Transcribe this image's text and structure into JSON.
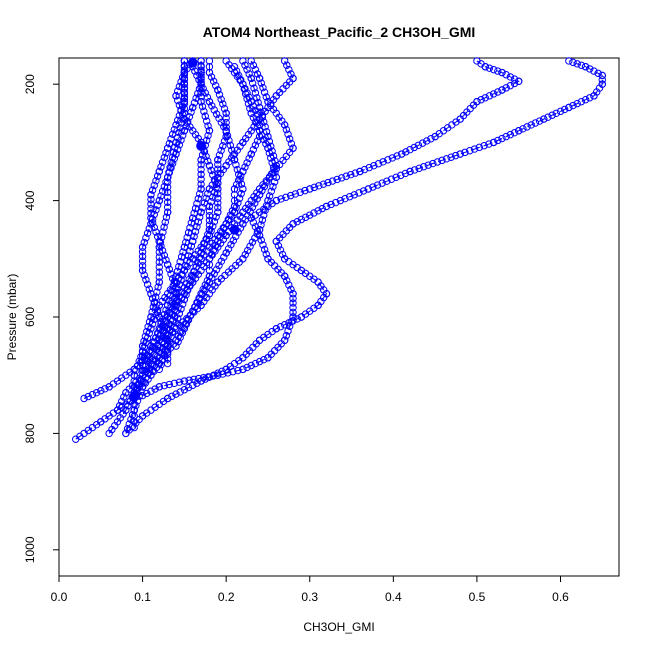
{
  "chart_data": {
    "type": "scatter",
    "title": "ATOM4 Northeast_Pacific_2 CH3OH_GMI",
    "xlabel": "CH3OH_GMI",
    "ylabel": "Pressure (mbar)",
    "xlim": [
      0.0,
      0.67
    ],
    "ylim": [
      1045,
      155
    ],
    "y_reversed": true,
    "xticks": [
      0.0,
      0.1,
      0.2,
      0.3,
      0.4,
      0.5,
      0.6
    ],
    "xtick_labels": [
      "0.0",
      "0.1",
      "0.2",
      "0.3",
      "0.4",
      "0.5",
      "0.6"
    ],
    "yticks": [
      200,
      400,
      600,
      800,
      1000
    ],
    "ytick_labels": [
      "200",
      "400",
      "600",
      "800",
      "1000"
    ],
    "grid": false,
    "marker_color": "#0000ff",
    "series": [
      {
        "points": [
          [
            0.02,
            810
          ],
          [
            0.05,
            780
          ],
          [
            0.09,
            740
          ],
          [
            0.1,
            700
          ],
          [
            0.11,
            650
          ],
          [
            0.13,
            600
          ],
          [
            0.15,
            550
          ],
          [
            0.17,
            500
          ],
          [
            0.19,
            460
          ],
          [
            0.21,
            420
          ],
          [
            0.22,
            380
          ],
          [
            0.21,
            330
          ],
          [
            0.2,
            280
          ],
          [
            0.18,
            230
          ],
          [
            0.16,
            170
          ]
        ]
      },
      {
        "points": [
          [
            0.03,
            740
          ],
          [
            0.06,
            720
          ],
          [
            0.09,
            690
          ],
          [
            0.11,
            660
          ],
          [
            0.14,
            620
          ],
          [
            0.17,
            580
          ],
          [
            0.19,
            540
          ],
          [
            0.22,
            500
          ],
          [
            0.24,
            450
          ],
          [
            0.25,
            400
          ],
          [
            0.26,
            360
          ],
          [
            0.25,
            310
          ],
          [
            0.23,
            250
          ],
          [
            0.22,
            200
          ],
          [
            0.2,
            160
          ]
        ]
      },
      {
        "points": [
          [
            0.06,
            800
          ],
          [
            0.08,
            760
          ],
          [
            0.09,
            730
          ],
          [
            0.1,
            700
          ],
          [
            0.1,
            650
          ],
          [
            0.11,
            600
          ],
          [
            0.12,
            540
          ],
          [
            0.12,
            480
          ],
          [
            0.13,
            420
          ],
          [
            0.13,
            360
          ],
          [
            0.14,
            300
          ],
          [
            0.15,
            250
          ],
          [
            0.15,
            200
          ],
          [
            0.15,
            160
          ]
        ]
      },
      {
        "points": [
          [
            0.08,
            800
          ],
          [
            0.09,
            760
          ],
          [
            0.1,
            720
          ],
          [
            0.12,
            680
          ],
          [
            0.14,
            640
          ],
          [
            0.16,
            590
          ],
          [
            0.18,
            540
          ],
          [
            0.2,
            490
          ],
          [
            0.22,
            440
          ],
          [
            0.24,
            390
          ],
          [
            0.26,
            340
          ],
          [
            0.25,
            290
          ],
          [
            0.24,
            240
          ],
          [
            0.23,
            190
          ],
          [
            0.22,
            160
          ]
        ]
      },
      {
        "points": [
          [
            0.09,
            735
          ],
          [
            0.1,
            700
          ],
          [
            0.11,
            660
          ],
          [
            0.12,
            620
          ],
          [
            0.13,
            580
          ],
          [
            0.14,
            530
          ],
          [
            0.15,
            480
          ],
          [
            0.16,
            430
          ],
          [
            0.17,
            380
          ],
          [
            0.17,
            330
          ],
          [
            0.18,
            280
          ],
          [
            0.17,
            230
          ],
          [
            0.17,
            180
          ],
          [
            0.17,
            160
          ]
        ]
      },
      {
        "points": [
          [
            0.1,
            720
          ],
          [
            0.11,
            680
          ],
          [
            0.12,
            640
          ],
          [
            0.13,
            600
          ],
          [
            0.14,
            560
          ],
          [
            0.15,
            520
          ],
          [
            0.16,
            470
          ],
          [
            0.17,
            420
          ],
          [
            0.18,
            380
          ],
          [
            0.2,
            340
          ],
          [
            0.22,
            300
          ],
          [
            0.24,
            260
          ],
          [
            0.26,
            220
          ],
          [
            0.28,
            190
          ],
          [
            0.27,
            160
          ]
        ]
      },
      {
        "points": [
          [
            0.11,
            700
          ],
          [
            0.12,
            660
          ],
          [
            0.13,
            620
          ],
          [
            0.14,
            580
          ],
          [
            0.16,
            540
          ],
          [
            0.18,
            500
          ],
          [
            0.2,
            460
          ],
          [
            0.22,
            420
          ],
          [
            0.24,
            380
          ],
          [
            0.26,
            345
          ],
          [
            0.28,
            310
          ],
          [
            0.27,
            270
          ],
          [
            0.25,
            230
          ],
          [
            0.24,
            190
          ],
          [
            0.23,
            160
          ]
        ]
      },
      {
        "points": [
          [
            0.13,
            680
          ],
          [
            0.13,
            640
          ],
          [
            0.12,
            600
          ],
          [
            0.11,
            560
          ],
          [
            0.1,
            520
          ],
          [
            0.1,
            480
          ],
          [
            0.11,
            440
          ],
          [
            0.12,
            400
          ],
          [
            0.13,
            360
          ],
          [
            0.14,
            320
          ],
          [
            0.15,
            280
          ],
          [
            0.16,
            240
          ],
          [
            0.17,
            200
          ],
          [
            0.17,
            160
          ]
        ]
      },
      {
        "points": [
          [
            0.1,
            735
          ],
          [
            0.12,
            720
          ],
          [
            0.15,
            710
          ],
          [
            0.19,
            700
          ],
          [
            0.22,
            690
          ],
          [
            0.25,
            670
          ],
          [
            0.27,
            640
          ],
          [
            0.28,
            600
          ],
          [
            0.28,
            560
          ],
          [
            0.27,
            530
          ],
          [
            0.25,
            500
          ],
          [
            0.24,
            460
          ],
          [
            0.23,
            430
          ],
          [
            0.26,
            400
          ],
          [
            0.3,
            380
          ],
          [
            0.36,
            350
          ],
          [
            0.41,
            320
          ],
          [
            0.45,
            290
          ],
          [
            0.48,
            260
          ],
          [
            0.5,
            230
          ],
          [
            0.53,
            210
          ],
          [
            0.55,
            195
          ],
          [
            0.53,
            180
          ],
          [
            0.51,
            170
          ],
          [
            0.5,
            160
          ]
        ]
      },
      {
        "points": [
          [
            0.08,
            800
          ],
          [
            0.1,
            770
          ],
          [
            0.13,
            740
          ],
          [
            0.17,
            710
          ],
          [
            0.2,
            690
          ],
          [
            0.22,
            670
          ],
          [
            0.24,
            640
          ],
          [
            0.26,
            620
          ],
          [
            0.29,
            600
          ],
          [
            0.31,
            580
          ],
          [
            0.32,
            560
          ],
          [
            0.31,
            540
          ],
          [
            0.29,
            520
          ],
          [
            0.27,
            500
          ],
          [
            0.26,
            470
          ],
          [
            0.28,
            440
          ],
          [
            0.32,
            410
          ],
          [
            0.37,
            380
          ],
          [
            0.42,
            350
          ],
          [
            0.48,
            320
          ],
          [
            0.52,
            300
          ],
          [
            0.55,
            280
          ],
          [
            0.58,
            260
          ],
          [
            0.61,
            240
          ],
          [
            0.64,
            220
          ],
          [
            0.65,
            200
          ],
          [
            0.65,
            185
          ],
          [
            0.63,
            170
          ],
          [
            0.61,
            160
          ]
        ]
      },
      {
        "points": [
          [
            0.14,
            650
          ],
          [
            0.15,
            620
          ],
          [
            0.16,
            590
          ],
          [
            0.17,
            560
          ],
          [
            0.18,
            530
          ],
          [
            0.18,
            500
          ],
          [
            0.19,
            470
          ],
          [
            0.2,
            440
          ],
          [
            0.21,
            410
          ],
          [
            0.21,
            380
          ],
          [
            0.22,
            350
          ],
          [
            0.23,
            320
          ],
          [
            0.24,
            290
          ],
          [
            0.24,
            260
          ],
          [
            0.23,
            230
          ],
          [
            0.22,
            200
          ],
          [
            0.21,
            170
          ]
        ]
      },
      {
        "points": [
          [
            0.09,
            790
          ],
          [
            0.09,
            760
          ],
          [
            0.09,
            730
          ],
          [
            0.09,
            700
          ],
          [
            0.1,
            660
          ],
          [
            0.11,
            620
          ],
          [
            0.12,
            580
          ],
          [
            0.14,
            540
          ],
          [
            0.16,
            500
          ],
          [
            0.18,
            460
          ],
          [
            0.19,
            420
          ],
          [
            0.19,
            380
          ],
          [
            0.18,
            340
          ],
          [
            0.17,
            300
          ],
          [
            0.15,
            260
          ],
          [
            0.14,
            220
          ],
          [
            0.15,
            180
          ],
          [
            0.16,
            160
          ]
        ]
      },
      {
        "points": [
          [
            0.12,
            690
          ],
          [
            0.13,
            650
          ],
          [
            0.14,
            610
          ],
          [
            0.15,
            570
          ],
          [
            0.16,
            530
          ],
          [
            0.17,
            490
          ],
          [
            0.18,
            450
          ],
          [
            0.18,
            410
          ],
          [
            0.19,
            370
          ],
          [
            0.19,
            330
          ],
          [
            0.2,
            290
          ],
          [
            0.2,
            250
          ],
          [
            0.19,
            210
          ],
          [
            0.18,
            180
          ],
          [
            0.18,
            160
          ]
        ]
      },
      {
        "points": [
          [
            0.07,
            760
          ],
          [
            0.08,
            730
          ],
          [
            0.1,
            700
          ],
          [
            0.12,
            670
          ],
          [
            0.13,
            630
          ],
          [
            0.14,
            590
          ],
          [
            0.14,
            550
          ],
          [
            0.13,
            510
          ],
          [
            0.12,
            470
          ],
          [
            0.11,
            430
          ],
          [
            0.11,
            390
          ],
          [
            0.12,
            350
          ],
          [
            0.13,
            310
          ],
          [
            0.14,
            270
          ],
          [
            0.15,
            230
          ],
          [
            0.15,
            190
          ],
          [
            0.15,
            160
          ]
        ]
      }
    ],
    "highlight_markers": [
      [
        0.21,
        450
      ],
      [
        0.16,
        163
      ],
      [
        0.17,
        306
      ],
      [
        0.09,
        736
      ]
    ]
  }
}
